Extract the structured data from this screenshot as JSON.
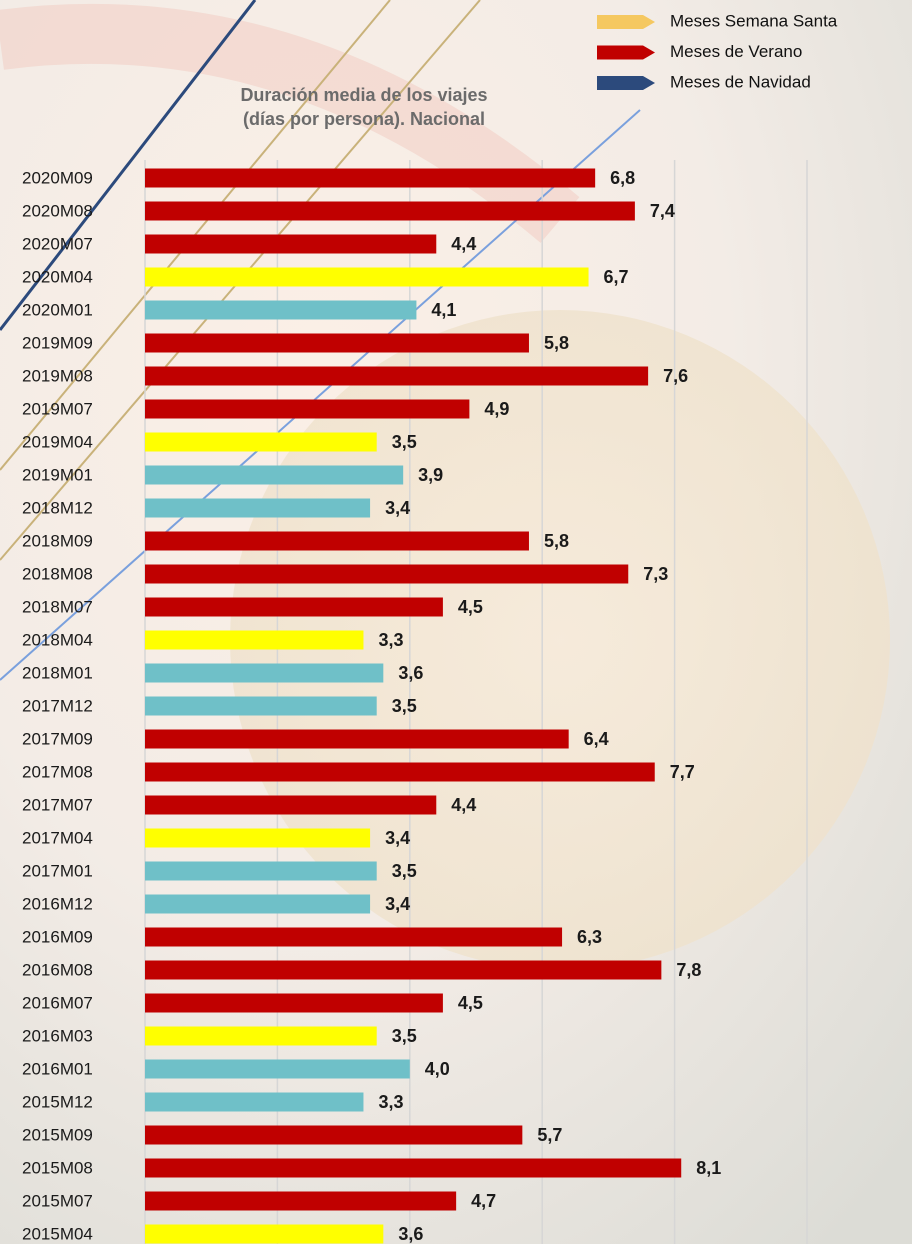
{
  "chart_data": {
    "type": "bar",
    "orientation": "horizontal",
    "title": [
      "Duración media de los viajes",
      "(días por persona). Nacional"
    ],
    "categories": [
      "2020M09",
      "2020M08",
      "2020M07",
      "2020M04",
      "2020M01",
      "2019M09",
      "2019M08",
      "2019M07",
      "2019M04",
      "2019M01",
      "2018M12",
      "2018M09",
      "2018M08",
      "2018M07",
      "2018M04",
      "2018M01",
      "2017M12",
      "2017M09",
      "2017M08",
      "2017M07",
      "2017M04",
      "2017M01",
      "2016M12",
      "2016M09",
      "2016M08",
      "2016M07",
      "2016M03",
      "2016M01",
      "2015M12",
      "2015M09",
      "2015M08",
      "2015M07",
      "2015M04"
    ],
    "values": [
      6.8,
      7.4,
      4.4,
      6.7,
      4.1,
      5.8,
      7.6,
      4.9,
      3.5,
      3.9,
      3.4,
      5.8,
      7.3,
      4.5,
      3.3,
      3.6,
      3.5,
      6.4,
      7.7,
      4.4,
      3.4,
      3.5,
      3.4,
      6.3,
      7.8,
      4.5,
      3.5,
      4.0,
      3.3,
      5.7,
      8.1,
      4.7,
      3.6
    ],
    "value_labels": [
      "6,8",
      "7,4",
      "4,4",
      "6,7",
      "4,1",
      "5,8",
      "7,6",
      "4,9",
      "3,5",
      "3,9",
      "3,4",
      "5,8",
      "7,3",
      "4,5",
      "3,3",
      "3,6",
      "3,5",
      "6,4",
      "7,7",
      "4,4",
      "3,4",
      "3,5",
      "3,4",
      "6,3",
      "7,8",
      "4,5",
      "3,5",
      "4,0",
      "3,3",
      "5,7",
      "8,1",
      "4,7",
      "3,6"
    ],
    "colors": [
      "#c00000",
      "#c00000",
      "#c00000",
      "#ffff00",
      "#6fc0c8",
      "#c00000",
      "#c00000",
      "#c00000",
      "#ffff00",
      "#6fc0c8",
      "#6fc0c8",
      "#c00000",
      "#c00000",
      "#c00000",
      "#ffff00",
      "#6fc0c8",
      "#6fc0c8",
      "#c00000",
      "#c00000",
      "#c00000",
      "#ffff00",
      "#6fc0c8",
      "#6fc0c8",
      "#c00000",
      "#c00000",
      "#c00000",
      "#ffff00",
      "#6fc0c8",
      "#6fc0c8",
      "#c00000",
      "#c00000",
      "#c00000",
      "#ffff00"
    ],
    "legend": [
      {
        "name": "Meses Semana Santa",
        "color": "#f5c860"
      },
      {
        "name": "Meses de Verano",
        "color": "#c00000"
      },
      {
        "name": "Meses de Navidad",
        "color": "#2c4a7c"
      }
    ],
    "xlim": [
      0,
      10
    ],
    "xticks": [
      0,
      2,
      4,
      6,
      8,
      10
    ],
    "grid": true
  }
}
